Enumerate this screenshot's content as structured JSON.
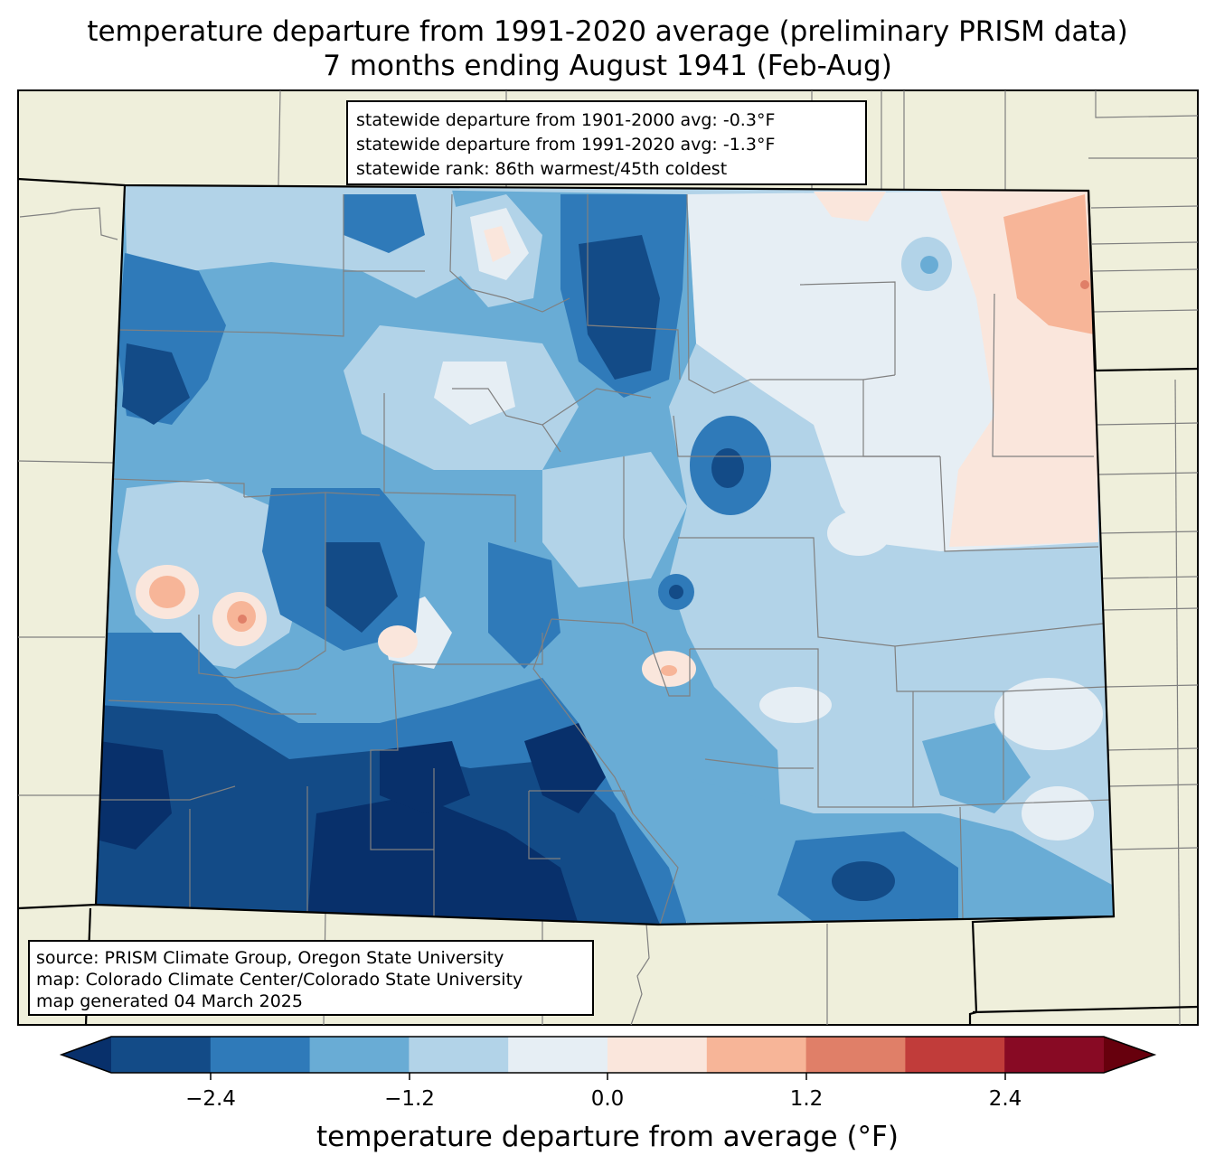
{
  "title": {
    "line1": "temperature departure from 1991-2020 average (preliminary PRISM data)",
    "line2": "7 months ending August 1941 (Feb-Aug)"
  },
  "stats_box": {
    "line1": "statewide departure from 1901-2000 avg: -0.3°F",
    "line2": "statewide departure from 1991-2020 avg: -1.3°F",
    "line3": "statewide rank: 86th warmest/45th coldest"
  },
  "source_box": {
    "line1": "source: PRISM Climate Group, Oregon State University",
    "line2": "map: Colorado Climate Center/Colorado State University",
    "line3": "map generated 04 March 2025"
  },
  "colorbar": {
    "label": "temperature departure from average (°F)",
    "ticks": [
      "−2.4",
      "−1.2",
      "0.0",
      "1.2",
      "2.4"
    ],
    "under_color": "#08306b",
    "over_color": "#67000d",
    "bins": [
      {
        "color": "#134b87"
      },
      {
        "color": "#2f7ab9"
      },
      {
        "color": "#69acd5"
      },
      {
        "color": "#b2d3e8"
      },
      {
        "color": "#e6eef4"
      },
      {
        "color": "#fae6dc"
      },
      {
        "color": "#f7b598"
      },
      {
        "color": "#e07f68"
      },
      {
        "color": "#c13c3a"
      },
      {
        "color": "#880a24"
      }
    ]
  },
  "map": {
    "land_color": "#efefdb",
    "border_color": "#000000",
    "county_color": "#808080"
  }
}
